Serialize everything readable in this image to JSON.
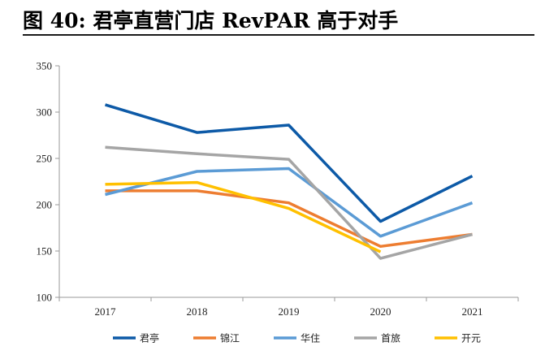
{
  "figure": {
    "title": "图 40: 君亭直营门店 RevPAR 高于对手"
  },
  "chart_data": {
    "type": "line",
    "title": "",
    "xlabel": "",
    "ylabel": "",
    "categories": [
      "2017",
      "2018",
      "2019",
      "2020",
      "2021"
    ],
    "ylim": [
      100,
      350
    ],
    "yticks": [
      100,
      150,
      200,
      250,
      300,
      350
    ],
    "grid": false,
    "legend_position": "bottom",
    "series": [
      {
        "name": "君亭",
        "color": "#0D5AA7",
        "values": [
          308,
          278,
          286,
          182,
          231
        ]
      },
      {
        "name": "锦江",
        "color": "#ED7D31",
        "values": [
          215,
          215,
          202,
          155,
          168
        ]
      },
      {
        "name": "华住",
        "color": "#5B9BD5",
        "values": [
          211,
          236,
          239,
          166,
          202
        ]
      },
      {
        "name": "首旅",
        "color": "#A5A5A5",
        "values": [
          262,
          255,
          249,
          142,
          168
        ]
      },
      {
        "name": "开元",
        "color": "#FFC000",
        "values": [
          222,
          224,
          196,
          149,
          null
        ]
      }
    ]
  }
}
